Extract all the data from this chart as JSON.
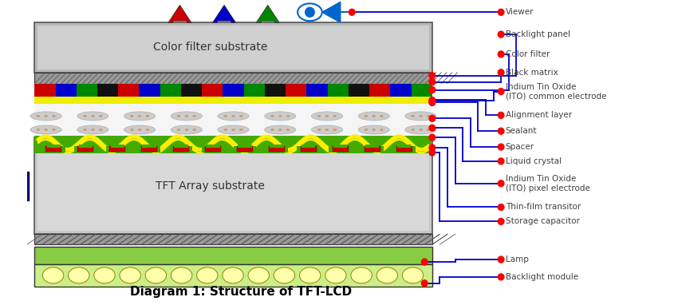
{
  "title": "Diagram 1: Structure of TFT-LCD",
  "title_fontsize": 11,
  "title_color": "#000000",
  "bg_color": "#ffffff",
  "line_color": "#0000cc",
  "dot_color": "#ff0000",
  "label_color": "#404040",
  "label_fontsize": 7.5,
  "labels": [
    "Viewer",
    "Backlight panel",
    "Color filter",
    "Black matrix",
    "Indium Tin Oxide\n(ITO) common electrode",
    "Alignment layer",
    "Sealant",
    "Spacer",
    "Liquid crystal",
    "Indium Tin Oxide\n(ITO) pixel electrode",
    "Thin-film transitor",
    "Storage capacitor",
    "Lamp",
    "Backlight module"
  ],
  "colors": {
    "color_filter_red": "#cc0000",
    "color_filter_blue": "#0000cc",
    "color_filter_green": "#008800",
    "color_filter_black": "#111111",
    "alignment_yellow": "#eeee00",
    "lc_ellipse_fill": "#cccccc",
    "tft_green": "#44aa00",
    "tft_yellow": "#ffee00",
    "tft_red": "#cc0000",
    "backlight_outer": "#88cc44",
    "backlight_inner": "#ccee88",
    "lamp_fill": "#ffffaa",
    "lamp_outline": "#888800",
    "driver_ic": "#0000aa",
    "hatch_color": "#888888",
    "substrate_gray": "#c8c8c8",
    "substrate_inner": "#d8d8d8"
  }
}
